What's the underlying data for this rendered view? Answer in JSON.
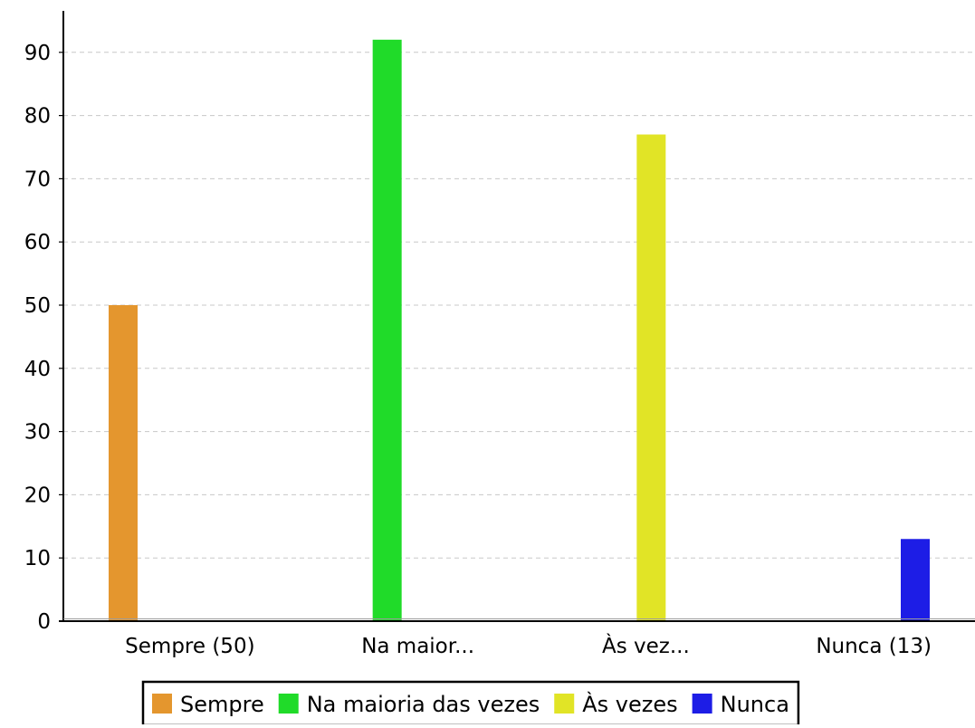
{
  "chart_data": {
    "type": "bar",
    "title": "",
    "xlabel": "",
    "ylabel": "",
    "categories": [
      "Sempre (50)",
      "Na maior...",
      "Às vez...",
      "Nunca (13)"
    ],
    "ylim": [
      0,
      96
    ],
    "yticks": [
      0,
      10,
      20,
      30,
      40,
      50,
      60,
      70,
      80,
      90
    ],
    "grid": true,
    "legend_position": "bottom",
    "series": [
      {
        "name": "Sempre",
        "color": "#e4962e",
        "values": [
          50,
          0,
          0,
          0
        ]
      },
      {
        "name": "Na maioria das vezes",
        "color": "#20db29",
        "values": [
          0,
          92,
          0,
          0
        ]
      },
      {
        "name": "Às vezes",
        "color": "#e1e426",
        "values": [
          0,
          0,
          77,
          0
        ]
      },
      {
        "name": "Nunca",
        "color": "#1d1de6",
        "values": [
          0,
          0,
          0,
          13
        ]
      }
    ]
  }
}
